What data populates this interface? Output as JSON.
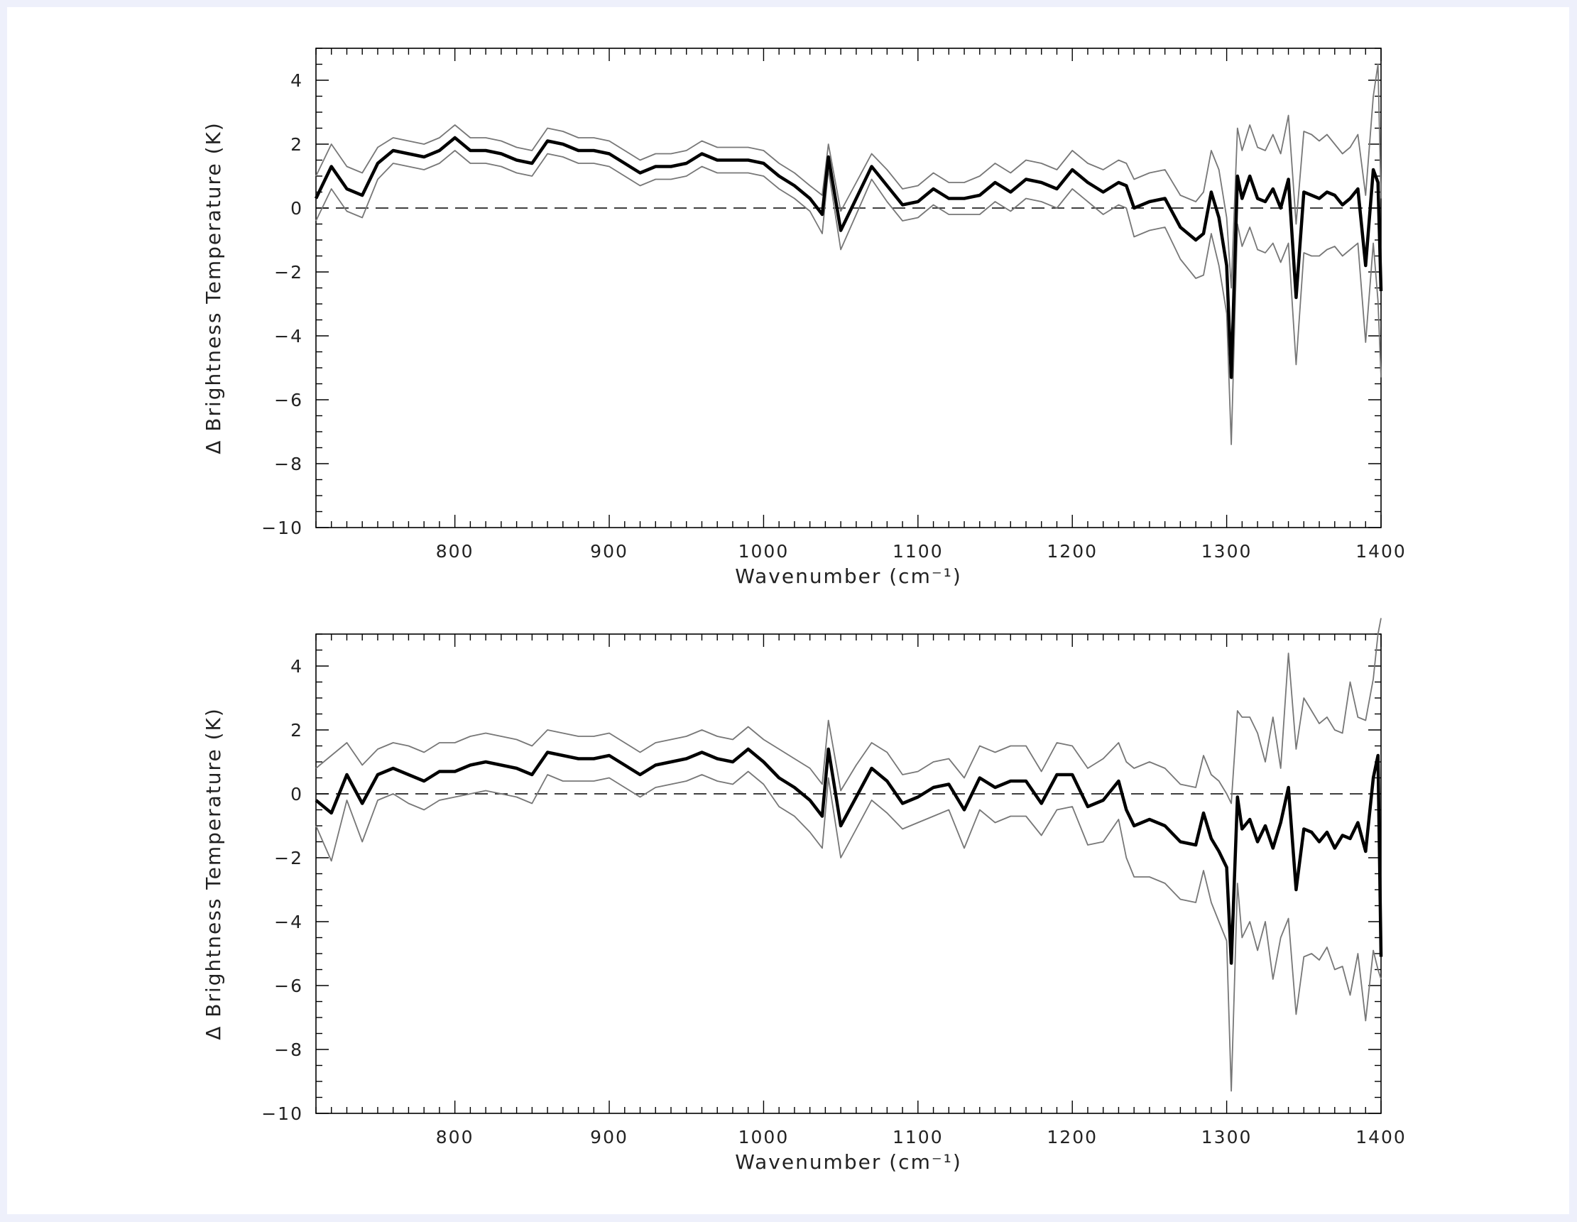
{
  "chart_data": [
    {
      "type": "line",
      "title": "",
      "xlabel": "Wavenumber (cm⁻¹)",
      "ylabel": "Δ Brightness Temperature (K)",
      "xlim": [
        710,
        1400
      ],
      "ylim": [
        -10,
        5
      ],
      "xticks": [
        "800",
        "900",
        "1000",
        "1100",
        "1200",
        "1300",
        "1400"
      ],
      "yticks": [
        "4",
        "2",
        "0",
        "−2",
        "−4",
        "−6",
        "−8",
        "−10"
      ],
      "reference_line": 0,
      "x": [
        710,
        720,
        730,
        740,
        750,
        760,
        770,
        780,
        790,
        800,
        810,
        820,
        830,
        840,
        850,
        860,
        870,
        880,
        890,
        900,
        910,
        920,
        930,
        940,
        950,
        960,
        970,
        980,
        990,
        1000,
        1010,
        1020,
        1030,
        1038,
        1042,
        1050,
        1060,
        1070,
        1080,
        1090,
        1100,
        1110,
        1120,
        1130,
        1140,
        1150,
        1160,
        1170,
        1180,
        1190,
        1200,
        1210,
        1220,
        1230,
        1235,
        1240,
        1250,
        1260,
        1270,
        1280,
        1285,
        1290,
        1295,
        1300,
        1303,
        1307,
        1310,
        1315,
        1320,
        1325,
        1330,
        1335,
        1340,
        1345,
        1350,
        1355,
        1360,
        1365,
        1370,
        1375,
        1380,
        1385,
        1390,
        1395,
        1398,
        1400
      ],
      "series": [
        {
          "name": "",
          "values": [
            0.3,
            1.3,
            0.6,
            0.4,
            1.4,
            1.8,
            1.7,
            1.6,
            1.8,
            2.2,
            1.8,
            1.8,
            1.7,
            1.5,
            1.4,
            2.1,
            2.0,
            1.8,
            1.8,
            1.7,
            1.4,
            1.1,
            1.3,
            1.3,
            1.4,
            1.7,
            1.5,
            1.5,
            1.5,
            1.4,
            1.0,
            0.7,
            0.3,
            -0.2,
            1.6,
            -0.7,
            0.3,
            1.3,
            0.7,
            0.1,
            0.2,
            0.6,
            0.3,
            0.3,
            0.4,
            0.8,
            0.5,
            0.9,
            0.8,
            0.6,
            1.2,
            0.8,
            0.5,
            0.8,
            0.7,
            0.0,
            0.2,
            0.3,
            -0.6,
            -1.0,
            -0.8,
            0.5,
            -0.3,
            -1.8,
            -5.3,
            1.0,
            0.3,
            1.0,
            0.3,
            0.2,
            0.6,
            0.0,
            0.9,
            -2.8,
            0.5,
            0.4,
            0.3,
            0.5,
            0.4,
            0.1,
            0.3,
            0.6,
            -1.8,
            1.2,
            0.8,
            -2.6
          ]
        },
        {
          "name": "",
          "values": [
            1.0,
            2.0,
            1.3,
            1.1,
            1.9,
            2.2,
            2.1,
            2.0,
            2.2,
            2.6,
            2.2,
            2.2,
            2.1,
            1.9,
            1.8,
            2.5,
            2.4,
            2.2,
            2.2,
            2.1,
            1.8,
            1.5,
            1.7,
            1.7,
            1.8,
            2.1,
            1.9,
            1.9,
            1.9,
            1.8,
            1.4,
            1.1,
            0.7,
            0.4,
            2.0,
            -0.1,
            0.8,
            1.7,
            1.2,
            0.6,
            0.7,
            1.1,
            0.8,
            0.8,
            1.0,
            1.4,
            1.1,
            1.5,
            1.4,
            1.2,
            1.8,
            1.4,
            1.2,
            1.5,
            1.4,
            0.9,
            1.1,
            1.2,
            0.4,
            0.2,
            0.5,
            1.8,
            1.2,
            -0.3,
            -2.5,
            2.5,
            1.8,
            2.6,
            1.9,
            1.8,
            2.3,
            1.7,
            2.9,
            -0.5,
            2.4,
            2.3,
            2.1,
            2.3,
            2.0,
            1.7,
            1.9,
            2.3,
            0.4,
            3.5,
            4.5,
            0.3
          ]
        },
        {
          "name": "",
          "values": [
            -0.4,
            0.6,
            -0.1,
            -0.3,
            0.9,
            1.4,
            1.3,
            1.2,
            1.4,
            1.8,
            1.4,
            1.4,
            1.3,
            1.1,
            1.0,
            1.7,
            1.6,
            1.4,
            1.4,
            1.3,
            1.0,
            0.7,
            0.9,
            0.9,
            1.0,
            1.3,
            1.1,
            1.1,
            1.1,
            1.0,
            0.6,
            0.3,
            -0.1,
            -0.8,
            1.2,
            -1.3,
            -0.2,
            0.9,
            0.2,
            -0.4,
            -0.3,
            0.1,
            -0.2,
            -0.2,
            -0.2,
            0.2,
            -0.1,
            0.3,
            0.2,
            0.0,
            0.6,
            0.2,
            -0.2,
            0.1,
            0.0,
            -0.9,
            -0.7,
            -0.6,
            -1.6,
            -2.2,
            -2.1,
            -0.8,
            -1.8,
            -3.3,
            -7.4,
            -0.5,
            -1.2,
            -0.6,
            -1.3,
            -1.4,
            -1.1,
            -1.7,
            -1.1,
            -4.9,
            -1.4,
            -1.5,
            -1.5,
            -1.3,
            -1.2,
            -1.5,
            -1.3,
            -1.1,
            -4.2,
            -1.1,
            -2.9,
            -5.3
          ]
        }
      ]
    },
    {
      "type": "line",
      "title": "",
      "xlabel": "Wavenumber (cm⁻¹)",
      "ylabel": "Δ Brightness Temperature (K)",
      "xlim": [
        710,
        1400
      ],
      "ylim": [
        -10,
        5
      ],
      "xticks": [
        "800",
        "900",
        "1000",
        "1100",
        "1200",
        "1300",
        "1400"
      ],
      "yticks": [
        "4",
        "2",
        "0",
        "−2",
        "−4",
        "−6",
        "−8",
        "−10"
      ],
      "reference_line": 0,
      "x": [
        710,
        720,
        730,
        740,
        750,
        760,
        770,
        780,
        790,
        800,
        810,
        820,
        830,
        840,
        850,
        860,
        870,
        880,
        890,
        900,
        910,
        920,
        930,
        940,
        950,
        960,
        970,
        980,
        990,
        1000,
        1010,
        1020,
        1030,
        1038,
        1042,
        1050,
        1060,
        1070,
        1080,
        1090,
        1100,
        1110,
        1120,
        1130,
        1140,
        1150,
        1160,
        1170,
        1180,
        1190,
        1200,
        1210,
        1220,
        1230,
        1235,
        1240,
        1250,
        1260,
        1270,
        1280,
        1285,
        1290,
        1295,
        1300,
        1303,
        1307,
        1310,
        1315,
        1320,
        1325,
        1330,
        1335,
        1340,
        1345,
        1350,
        1355,
        1360,
        1365,
        1370,
        1375,
        1380,
        1385,
        1390,
        1395,
        1398,
        1400
      ],
      "series": [
        {
          "name": "",
          "values": [
            -0.2,
            -0.6,
            0.6,
            -0.3,
            0.6,
            0.8,
            0.6,
            0.4,
            0.7,
            0.7,
            0.9,
            1.0,
            0.9,
            0.8,
            0.6,
            1.3,
            1.2,
            1.1,
            1.1,
            1.2,
            0.9,
            0.6,
            0.9,
            1.0,
            1.1,
            1.3,
            1.1,
            1.0,
            1.4,
            1.0,
            0.5,
            0.2,
            -0.2,
            -0.7,
            1.4,
            -1.0,
            -0.1,
            0.8,
            0.4,
            -0.3,
            -0.1,
            0.2,
            0.3,
            -0.5,
            0.5,
            0.2,
            0.4,
            0.4,
            -0.3,
            0.6,
            0.6,
            -0.4,
            -0.2,
            0.4,
            -0.5,
            -1.0,
            -0.8,
            -1.0,
            -1.5,
            -1.6,
            -0.6,
            -1.4,
            -1.8,
            -2.3,
            -5.3,
            -0.1,
            -1.1,
            -0.8,
            -1.5,
            -1.0,
            -1.7,
            -0.9,
            0.2,
            -3.0,
            -1.1,
            -1.2,
            -1.5,
            -1.2,
            -1.7,
            -1.3,
            -1.4,
            -0.9,
            -1.8,
            0.5,
            1.2,
            -5.1
          ]
        },
        {
          "name": "",
          "values": [
            0.8,
            1.2,
            1.6,
            0.9,
            1.4,
            1.6,
            1.5,
            1.3,
            1.6,
            1.6,
            1.8,
            1.9,
            1.8,
            1.7,
            1.5,
            2.0,
            1.9,
            1.8,
            1.8,
            1.9,
            1.6,
            1.3,
            1.6,
            1.7,
            1.8,
            2.0,
            1.8,
            1.7,
            2.1,
            1.7,
            1.4,
            1.1,
            0.8,
            0.3,
            2.3,
            0.1,
            0.9,
            1.6,
            1.3,
            0.6,
            0.7,
            1.0,
            1.1,
            0.5,
            1.5,
            1.3,
            1.5,
            1.5,
            0.7,
            1.6,
            1.5,
            0.8,
            1.1,
            1.6,
            1.0,
            0.8,
            1.0,
            0.8,
            0.3,
            0.2,
            1.2,
            0.6,
            0.4,
            0.0,
            -0.3,
            2.6,
            2.4,
            2.4,
            1.9,
            1.0,
            2.4,
            0.8,
            4.4,
            1.4,
            3.0,
            2.6,
            2.2,
            2.4,
            2.0,
            1.9,
            3.5,
            2.4,
            2.3,
            3.6,
            5.0,
            5.5
          ]
        },
        {
          "name": "",
          "values": [
            -1.0,
            -2.1,
            -0.2,
            -1.5,
            -0.2,
            0.0,
            -0.3,
            -0.5,
            -0.2,
            -0.1,
            0.0,
            0.1,
            0.0,
            -0.1,
            -0.3,
            0.6,
            0.4,
            0.4,
            0.4,
            0.5,
            0.2,
            -0.1,
            0.2,
            0.3,
            0.4,
            0.6,
            0.4,
            0.3,
            0.7,
            0.3,
            -0.4,
            -0.7,
            -1.2,
            -1.7,
            0.5,
            -2.0,
            -1.1,
            -0.2,
            -0.6,
            -1.1,
            -0.9,
            -0.7,
            -0.5,
            -1.7,
            -0.5,
            -0.9,
            -0.7,
            -0.7,
            -1.3,
            -0.5,
            -0.4,
            -1.6,
            -1.5,
            -0.8,
            -2.0,
            -2.6,
            -2.6,
            -2.8,
            -3.3,
            -3.4,
            -2.4,
            -3.4,
            -4.0,
            -4.6,
            -9.3,
            -2.8,
            -4.5,
            -4.0,
            -4.9,
            -4.0,
            -5.8,
            -4.5,
            -3.9,
            -6.9,
            -5.1,
            -5.0,
            -5.2,
            -4.8,
            -5.5,
            -5.4,
            -6.3,
            -5.0,
            -7.1,
            -4.9,
            -5.5,
            -5.8
          ]
        }
      ]
    }
  ]
}
